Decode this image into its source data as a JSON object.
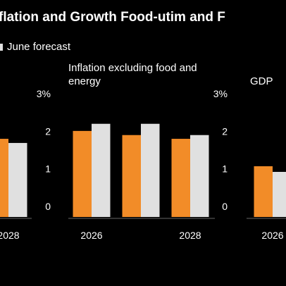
{
  "title": "flation and Growth Food-utim and F",
  "chart_data": [
    {
      "type": "bar",
      "categories": [
        "2028"
      ],
      "series": [
        {
          "color": "#f28c28",
          "values": [
            2.08
          ]
        },
        {
          "name": "June forecast",
          "color": "#e0e0e0",
          "values": [
            1.97
          ]
        }
      ],
      "ylim": [
        0,
        3
      ],
      "yticks": [
        0,
        1,
        2,
        {
          "value": 3,
          "label": "3%"
        }
      ],
      "grid": false
    },
    {
      "type": "bar",
      "title": "Inflation excluding food and energy",
      "categories": [
        "2026",
        null,
        "2028"
      ],
      "series": [
        {
          "color": "#f28c28",
          "values": [
            2.29,
            2.18,
            2.08
          ]
        },
        {
          "color": "#e0e0e0",
          "values": [
            2.48,
            2.48,
            2.18
          ]
        }
      ],
      "ylim": [
        0,
        3
      ],
      "yticks": [
        0,
        1,
        2,
        {
          "value": 3,
          "label": "3%"
        }
      ],
      "grid": false
    },
    {
      "type": "bar",
      "title": "GDP",
      "categories": [
        "2026"
      ],
      "series": [
        {
          "color": "#f28c28",
          "values": [
            1.35
          ]
        },
        {
          "color": "#e0e0e0",
          "values": [
            1.2
          ]
        }
      ],
      "ylim": [
        0,
        3
      ],
      "grid": false
    }
  ]
}
